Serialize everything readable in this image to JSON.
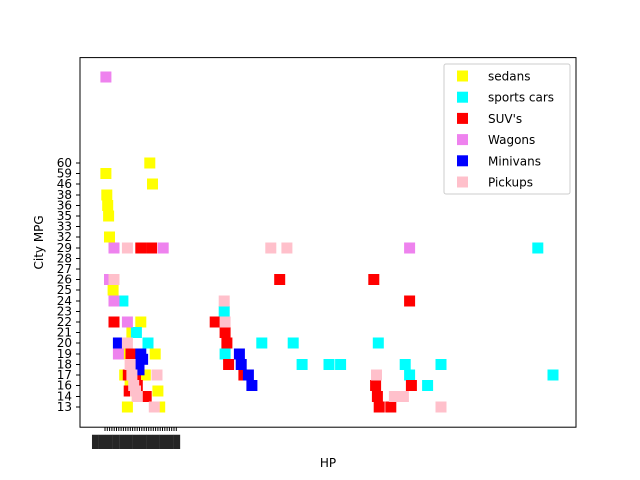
{
  "chart_data": {
    "type": "scatter",
    "xlabel": "HP",
    "ylabel": "City MPG",
    "y_ticks": [
      13,
      14,
      16,
      17,
      18,
      19,
      20,
      21,
      22,
      23,
      24,
      25,
      26,
      27,
      28,
      29,
      32,
      33,
      35,
      36,
      38,
      46,
      59,
      60
    ],
    "x_tick_note": "overlapping unreadable tick labels under the left point cluster",
    "legend_position": "upper-right",
    "grid": false,
    "series": [
      {
        "name": "sedans",
        "color": "#ffff00",
        "points": [
          [
            0.1,
            59.0
          ],
          [
            0.2,
            38.0
          ],
          [
            0.3,
            36.0
          ],
          [
            0.4,
            35.0
          ],
          [
            0.5,
            32.0
          ],
          [
            0.6,
            26.0
          ],
          [
            0.9,
            25.0
          ],
          [
            1.0,
            22.0
          ],
          [
            1.3,
            24.0
          ],
          [
            1.6,
            20.0
          ],
          [
            1.9,
            19.0
          ],
          [
            2.2,
            17.0
          ],
          [
            2.5,
            13.0
          ],
          [
            2.8,
            16.0
          ],
          [
            3.0,
            21.0
          ],
          [
            3.2,
            18.0
          ],
          [
            3.6,
            14.0
          ],
          [
            4.0,
            22.0
          ],
          [
            4.5,
            17.0
          ],
          [
            5.0,
            60.0
          ],
          [
            5.3,
            46.0
          ],
          [
            5.6,
            19.0
          ],
          [
            5.9,
            15.0
          ],
          [
            6.1,
            13.0
          ]
        ]
      },
      {
        "name": "sports cars",
        "color": "#00ffff",
        "points": [
          [
            2.0,
            24.0
          ],
          [
            3.5,
            21.0
          ],
          [
            4.8,
            20.0
          ],
          [
            13.3,
            23.0
          ],
          [
            13.4,
            19.0
          ],
          [
            17.5,
            20.0
          ],
          [
            21.0,
            20.0
          ],
          [
            22.0,
            18.0
          ],
          [
            25.0,
            18.0
          ],
          [
            26.3,
            18.0
          ],
          [
            30.5,
            20.0
          ],
          [
            33.5,
            18.0
          ],
          [
            34.0,
            17.0
          ],
          [
            36.0,
            16.0
          ],
          [
            37.5,
            18.0
          ],
          [
            48.3,
            29.0
          ],
          [
            50.0,
            17.0
          ]
        ]
      },
      {
        "name": "SUV's",
        "color": "#ff0000",
        "points": [
          [
            1.0,
            22.0
          ],
          [
            2.6,
            17.0
          ],
          [
            4.0,
            29.0
          ],
          [
            4.6,
            14.0
          ],
          [
            5.2,
            29.0
          ],
          [
            12.3,
            22.0
          ],
          [
            13.4,
            21.0
          ],
          [
            13.6,
            20.0
          ],
          [
            13.8,
            18.0
          ],
          [
            15.5,
            17.0
          ],
          [
            19.5,
            26.0
          ],
          [
            30.0,
            26.0
          ],
          [
            30.2,
            16.0
          ],
          [
            30.4,
            14.0
          ],
          [
            30.6,
            13.0
          ],
          [
            31.9,
            13.0
          ],
          [
            34.0,
            24.0
          ],
          [
            34.2,
            16.0
          ],
          [
            3.8,
            14.0
          ],
          [
            3.6,
            16.0
          ],
          [
            3.4,
            17.0
          ],
          [
            3.2,
            18.0
          ],
          [
            2.9,
            19.0
          ],
          [
            2.7,
            15.0
          ]
        ]
      },
      {
        "name": "Wagons",
        "color": "#ee82ee",
        "points": [
          [
            0.1,
            69.0
          ],
          [
            1.0,
            29.0
          ],
          [
            6.5,
            29.0
          ],
          [
            34.0,
            29.0
          ],
          [
            0.5,
            26.0
          ],
          [
            1.0,
            24.0
          ],
          [
            1.5,
            19.0
          ],
          [
            2.5,
            22.0
          ]
        ]
      },
      {
        "name": "Minivans",
        "color": "#0000ff",
        "points": [
          [
            1.5,
            20.0
          ],
          [
            3.5,
            18.0
          ],
          [
            4.0,
            19.0
          ],
          [
            3.8,
            17.5
          ],
          [
            4.2,
            18.5
          ],
          [
            15.0,
            19.0
          ],
          [
            15.2,
            18.0
          ],
          [
            16.0,
            17.0
          ],
          [
            16.4,
            16.0
          ]
        ]
      },
      {
        "name": "Pickups",
        "color": "#ffc0cb",
        "points": [
          [
            1.0,
            26.0
          ],
          [
            2.5,
            29.0
          ],
          [
            2.5,
            20.0
          ],
          [
            2.8,
            18.0
          ],
          [
            3.0,
            17.0
          ],
          [
            3.2,
            16.0
          ],
          [
            3.4,
            15.0
          ],
          [
            3.6,
            14.0
          ],
          [
            5.5,
            13.0
          ],
          [
            5.8,
            17.0
          ],
          [
            13.3,
            24.0
          ],
          [
            13.4,
            22.0
          ],
          [
            18.5,
            29.0
          ],
          [
            20.3,
            29.0
          ],
          [
            30.3,
            17.0
          ],
          [
            32.3,
            14.0
          ],
          [
            33.3,
            14.0
          ],
          [
            37.5,
            13.0
          ]
        ]
      }
    ]
  }
}
